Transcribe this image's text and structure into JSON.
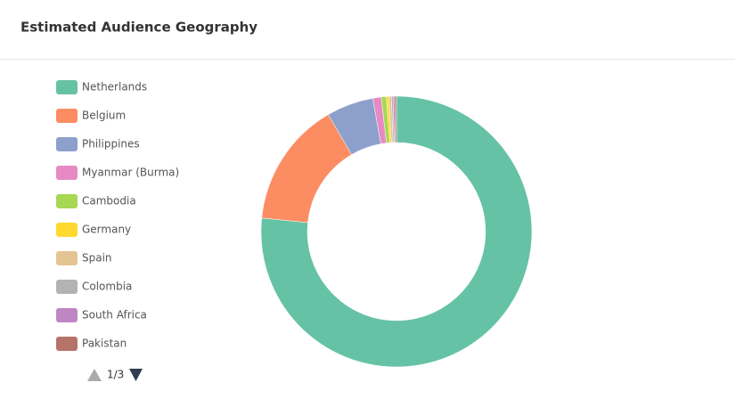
{
  "chart_data": {
    "type": "pie",
    "donut": true,
    "title": "Estimated Audience Geography",
    "categories": [
      "Netherlands",
      "Belgium",
      "Philippines",
      "Myanmar (Burma)",
      "Cambodia",
      "Germany",
      "Spain",
      "Colombia",
      "South Africa",
      "Pakistan"
    ],
    "values": [
      76.6,
      15.0,
      5.6,
      1.0,
      0.6,
      0.3,
      0.3,
      0.2,
      0.2,
      0.2
    ],
    "colors": [
      "#66c2a5",
      "#fc8d62",
      "#8da0cb",
      "#e78ac3",
      "#a6d854",
      "#ffd92f",
      "#e5c494",
      "#b3b3b3",
      "#bf86c3",
      "#b5736a"
    ],
    "page_label": "1/3"
  }
}
